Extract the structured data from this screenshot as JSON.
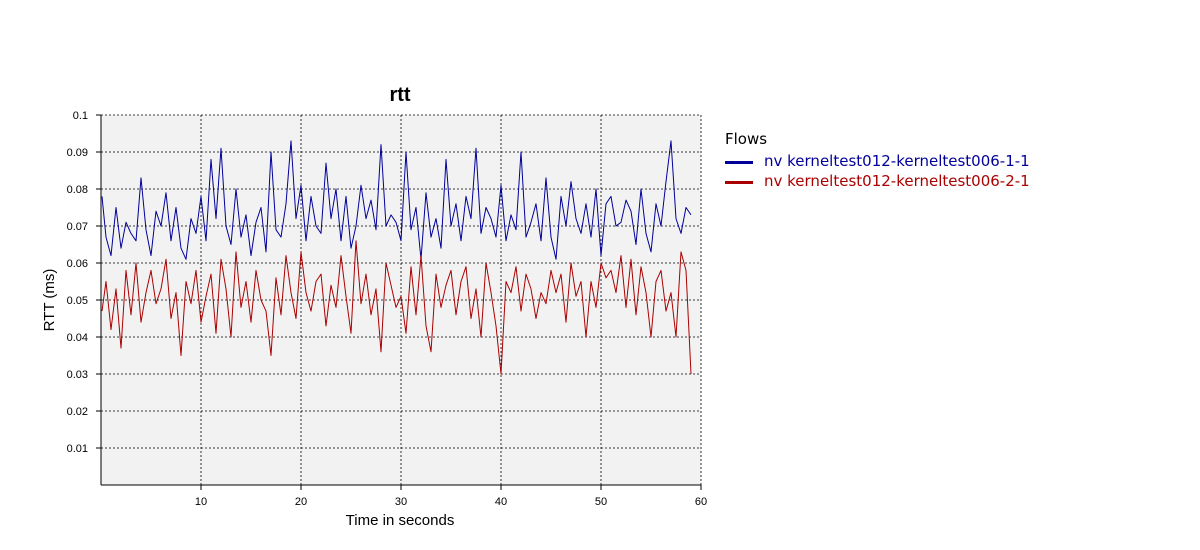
{
  "chart_data": {
    "type": "line",
    "title": "rtt",
    "xlabel": "Time in seconds",
    "ylabel": "RTT (ms)",
    "xlim": [
      0,
      60
    ],
    "ylim": [
      0,
      0.1
    ],
    "x_ticks": [
      "10",
      "20",
      "30",
      "40",
      "50",
      "60"
    ],
    "y_ticks": [
      "0.01",
      "0.02",
      "0.03",
      "0.04",
      "0.05",
      "0.06",
      "0.07",
      "0.08",
      "0.09",
      "0.1"
    ],
    "grid": true,
    "legend": {
      "title": "Flows",
      "position": "right"
    },
    "series": [
      {
        "name": "nv kerneltest012-kerneltest006-1-1",
        "color": "#000099",
        "x": [
          0.1,
          0.5,
          1,
          1.5,
          2,
          2.5,
          3,
          3.5,
          4,
          4.5,
          5,
          5.5,
          6,
          6.5,
          7,
          7.5,
          8,
          8.5,
          9,
          9.5,
          10,
          10.5,
          11,
          11.5,
          12,
          12.5,
          13,
          13.5,
          14,
          14.5,
          15,
          15.5,
          16,
          16.5,
          17,
          17.5,
          18,
          18.5,
          19,
          19.5,
          20,
          20.5,
          21,
          21.5,
          22,
          22.5,
          23,
          23.5,
          24,
          24.5,
          25,
          25.5,
          26,
          26.5,
          27,
          27.5,
          28,
          28.5,
          29,
          29.5,
          30,
          30.5,
          31,
          31.5,
          32,
          32.5,
          33,
          33.5,
          34,
          34.5,
          35,
          35.5,
          36,
          36.5,
          37,
          37.5,
          38,
          38.5,
          39,
          39.5,
          40,
          40.5,
          41,
          41.5,
          42,
          42.5,
          43,
          43.5,
          44,
          44.5,
          45,
          45.5,
          46,
          46.5,
          47,
          47.5,
          48,
          48.5,
          49,
          49.5,
          50,
          50.5,
          51,
          51.5,
          52,
          52.5,
          53,
          53.5,
          54,
          54.5,
          55,
          55.5,
          56,
          56.5,
          57,
          57.5,
          58,
          58.5,
          59
        ],
        "values": [
          0.078,
          0.067,
          0.062,
          0.075,
          0.064,
          0.071,
          0.068,
          0.066,
          0.083,
          0.069,
          0.062,
          0.074,
          0.07,
          0.079,
          0.066,
          0.075,
          0.064,
          0.061,
          0.072,
          0.068,
          0.078,
          0.066,
          0.088,
          0.072,
          0.091,
          0.07,
          0.065,
          0.08,
          0.067,
          0.073,
          0.062,
          0.071,
          0.075,
          0.063,
          0.09,
          0.069,
          0.067,
          0.076,
          0.093,
          0.072,
          0.081,
          0.066,
          0.078,
          0.07,
          0.068,
          0.087,
          0.072,
          0.08,
          0.066,
          0.078,
          0.064,
          0.07,
          0.081,
          0.072,
          0.077,
          0.069,
          0.092,
          0.07,
          0.073,
          0.071,
          0.066,
          0.09,
          0.069,
          0.075,
          0.061,
          0.079,
          0.067,
          0.072,
          0.064,
          0.088,
          0.07,
          0.076,
          0.066,
          0.078,
          0.072,
          0.091,
          0.068,
          0.075,
          0.072,
          0.067,
          0.081,
          0.066,
          0.073,
          0.069,
          0.09,
          0.067,
          0.071,
          0.076,
          0.066,
          0.083,
          0.067,
          0.061,
          0.078,
          0.07,
          0.082,
          0.072,
          0.068,
          0.076,
          0.067,
          0.08,
          0.062,
          0.076,
          0.078,
          0.07,
          0.071,
          0.077,
          0.074,
          0.065,
          0.08,
          0.068,
          0.063,
          0.076,
          0.07,
          0.082,
          0.093,
          0.072,
          0.068,
          0.075,
          0.073
        ],
        "stroke_width": 1
      },
      {
        "name": "nv kerneltest012-kerneltest006-2-1",
        "color": "#aa0000",
        "x": [
          0.1,
          0.5,
          1,
          1.5,
          2,
          2.5,
          3,
          3.5,
          4,
          4.5,
          5,
          5.5,
          6,
          6.5,
          7,
          7.5,
          8,
          8.5,
          9,
          9.5,
          10,
          10.5,
          11,
          11.5,
          12,
          12.5,
          13,
          13.5,
          14,
          14.5,
          15,
          15.5,
          16,
          16.5,
          17,
          17.5,
          18,
          18.5,
          19,
          19.5,
          20,
          20.5,
          21,
          21.5,
          22,
          22.5,
          23,
          23.5,
          24,
          24.5,
          25,
          25.5,
          26,
          26.5,
          27,
          27.5,
          28,
          28.5,
          29,
          29.5,
          30,
          30.5,
          31,
          31.5,
          32,
          32.5,
          33,
          33.5,
          34,
          34.5,
          35,
          35.5,
          36,
          36.5,
          37,
          37.5,
          38,
          38.5,
          39,
          39.5,
          40,
          40.5,
          41,
          41.5,
          42,
          42.5,
          43,
          43.5,
          44,
          44.5,
          45,
          45.5,
          46,
          46.5,
          47,
          47.5,
          48,
          48.5,
          49,
          49.5,
          50,
          50.5,
          51,
          51.5,
          52,
          52.5,
          53,
          53.5,
          54,
          54.5,
          55,
          55.5,
          56,
          56.5,
          57,
          57.5,
          58,
          58.5,
          59
        ],
        "values": [
          0.047,
          0.055,
          0.042,
          0.053,
          0.037,
          0.058,
          0.046,
          0.06,
          0.044,
          0.052,
          0.058,
          0.049,
          0.053,
          0.061,
          0.045,
          0.052,
          0.035,
          0.055,
          0.049,
          0.058,
          0.044,
          0.051,
          0.057,
          0.041,
          0.061,
          0.053,
          0.04,
          0.063,
          0.048,
          0.055,
          0.044,
          0.058,
          0.05,
          0.047,
          0.035,
          0.056,
          0.046,
          0.062,
          0.052,
          0.045,
          0.063,
          0.052,
          0.047,
          0.055,
          0.057,
          0.043,
          0.054,
          0.048,
          0.062,
          0.051,
          0.041,
          0.066,
          0.049,
          0.057,
          0.046,
          0.053,
          0.036,
          0.06,
          0.054,
          0.048,
          0.051,
          0.041,
          0.059,
          0.046,
          0.062,
          0.043,
          0.036,
          0.057,
          0.048,
          0.054,
          0.058,
          0.046,
          0.055,
          0.059,
          0.045,
          0.053,
          0.04,
          0.06,
          0.052,
          0.043,
          0.03,
          0.055,
          0.052,
          0.059,
          0.047,
          0.057,
          0.053,
          0.045,
          0.052,
          0.049,
          0.058,
          0.052,
          0.057,
          0.044,
          0.06,
          0.051,
          0.055,
          0.04,
          0.055,
          0.048,
          0.06,
          0.056,
          0.058,
          0.052,
          0.062,
          0.048,
          0.061,
          0.046,
          0.059,
          0.052,
          0.04,
          0.055,
          0.058,
          0.047,
          0.052,
          0.04,
          0.063,
          0.058,
          0.03
        ],
        "stroke_width": 1
      }
    ]
  }
}
